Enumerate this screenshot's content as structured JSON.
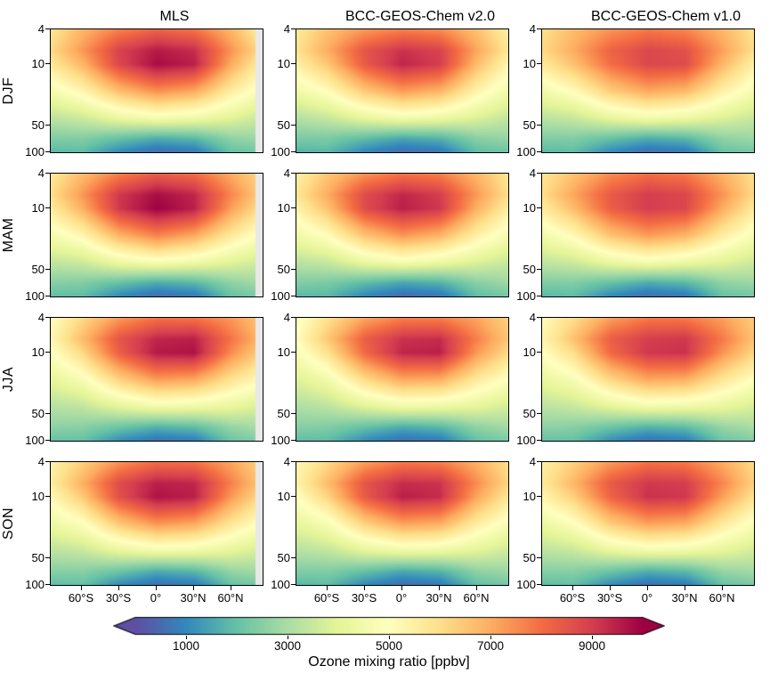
{
  "figure": {
    "columns": [
      "MLS",
      "BCC-GEOS-Chem v2.0",
      "BCC-GEOS-Chem v1.0"
    ],
    "rows": [
      "DJF",
      "MAM",
      "JJA",
      "SON"
    ]
  },
  "axes": {
    "y_ticks": [
      "4",
      "10",
      "50",
      "100"
    ],
    "y_tick_values": [
      4,
      10,
      50,
      100
    ],
    "x_ticks": [
      "60°S",
      "30°S",
      "0°",
      "30°N",
      "60°N"
    ],
    "x_tick_values": [
      -60,
      -30,
      0,
      30,
      60
    ],
    "lat_range": [
      -85,
      85
    ],
    "pressure_range": [
      4,
      100
    ],
    "y_scale": "log"
  },
  "colorbar": {
    "ticks": [
      "1000",
      "3000",
      "5000",
      "7000",
      "9000"
    ],
    "tick_values": [
      1000,
      3000,
      5000,
      7000,
      9000
    ],
    "range": [
      0,
      10000
    ],
    "label": "Ozone mixing ratio [ppbv]",
    "colormap": "Spectral_r",
    "colors": [
      [
        0.0,
        "#5e4fa2"
      ],
      [
        0.1,
        "#3288bd"
      ],
      [
        0.2,
        "#66c2a5"
      ],
      [
        0.3,
        "#abdda4"
      ],
      [
        0.4,
        "#e6f598"
      ],
      [
        0.5,
        "#ffffbf"
      ],
      [
        0.6,
        "#fee08b"
      ],
      [
        0.7,
        "#fdae61"
      ],
      [
        0.8,
        "#f46d43"
      ],
      [
        0.9,
        "#d53e4f"
      ],
      [
        1.0,
        "#9e0142"
      ]
    ]
  },
  "chart_data": {
    "type": "heatmap",
    "units": "ppbv",
    "no_data_color": "#e9e9e9",
    "lats": [
      -85,
      -60,
      -30,
      0,
      30,
      60,
      85
    ],
    "pressures": [
      4,
      7,
      10,
      20,
      40,
      70,
      100
    ],
    "panels": [
      {
        "row": "DJF",
        "col": "MLS",
        "edge_strip": true,
        "values": [
          [
            5800,
            6800,
            7700,
            8200,
            7900,
            6800,
            5500
          ],
          [
            6100,
            7300,
            8900,
            9600,
            9300,
            7400,
            6000
          ],
          [
            5700,
            6800,
            8800,
            9800,
            9500,
            7000,
            5500
          ],
          [
            4600,
            5300,
            6700,
            7500,
            7100,
            5600,
            4700
          ],
          [
            3300,
            3600,
            4300,
            4700,
            4500,
            4000,
            3500
          ],
          [
            2400,
            2400,
            2000,
            1600,
            1800,
            2600,
            2800
          ],
          [
            1800,
            1900,
            1000,
            500,
            700,
            2000,
            2200
          ]
        ]
      },
      {
        "row": "DJF",
        "col": "BCC-GEOS-Chem v2.0",
        "edge_strip": false,
        "values": [
          [
            5700,
            6600,
            7300,
            7700,
            7500,
            6600,
            5500
          ],
          [
            5900,
            7000,
            8500,
            9200,
            8900,
            7100,
            5800
          ],
          [
            5500,
            6500,
            8400,
            9400,
            9000,
            6700,
            5300
          ],
          [
            4400,
            5100,
            6500,
            7300,
            6900,
            5400,
            4500
          ],
          [
            3200,
            3500,
            4200,
            4600,
            4400,
            3900,
            3400
          ],
          [
            2300,
            2300,
            1900,
            1500,
            1700,
            2500,
            2700
          ],
          [
            1700,
            1800,
            950,
            480,
            650,
            1900,
            2100
          ]
        ]
      },
      {
        "row": "DJF",
        "col": "BCC-GEOS-Chem v1.0",
        "edge_strip": false,
        "values": [
          [
            6000,
            6700,
            7400,
            7800,
            7600,
            6800,
            5900
          ],
          [
            6100,
            7000,
            8200,
            8800,
            8600,
            7200,
            6000
          ],
          [
            5700,
            6600,
            8000,
            8800,
            8700,
            6800,
            5500
          ],
          [
            4500,
            5100,
            6400,
            7100,
            6800,
            5500,
            4600
          ],
          [
            3300,
            3500,
            4200,
            4600,
            4400,
            3900,
            3500
          ],
          [
            2400,
            2400,
            2000,
            1600,
            1800,
            2600,
            2800
          ],
          [
            1800,
            1900,
            1000,
            520,
            700,
            2000,
            2200
          ]
        ]
      },
      {
        "row": "MAM",
        "col": "MLS",
        "edge_strip": true,
        "values": [
          [
            5700,
            6700,
            7700,
            8300,
            8000,
            7000,
            6100
          ],
          [
            6000,
            7300,
            9100,
            9800,
            9400,
            7600,
            6300
          ],
          [
            5600,
            6900,
            9100,
            10000,
            9500,
            7200,
            5900
          ],
          [
            4600,
            5300,
            6900,
            7700,
            7100,
            5700,
            4800
          ],
          [
            3400,
            3600,
            4400,
            4800,
            4500,
            4000,
            3600
          ],
          [
            2500,
            2400,
            2000,
            1600,
            1800,
            2600,
            2900
          ],
          [
            1900,
            1900,
            1000,
            500,
            700,
            2000,
            2300
          ]
        ]
      },
      {
        "row": "MAM",
        "col": "BCC-GEOS-Chem v2.0",
        "edge_strip": false,
        "values": [
          [
            5500,
            6500,
            7400,
            7900,
            7700,
            6800,
            5800
          ],
          [
            5800,
            7000,
            8700,
            9400,
            9000,
            7300,
            6000
          ],
          [
            5400,
            6600,
            8700,
            9500,
            9100,
            6900,
            5600
          ],
          [
            4400,
            5100,
            6600,
            7400,
            6900,
            5500,
            4600
          ],
          [
            3300,
            3500,
            4300,
            4700,
            4400,
            3900,
            3500
          ],
          [
            2400,
            2300,
            1900,
            1500,
            1700,
            2500,
            2800
          ],
          [
            1800,
            1800,
            950,
            480,
            650,
            1900,
            2200
          ]
        ]
      },
      {
        "row": "MAM",
        "col": "BCC-GEOS-Chem v1.0",
        "edge_strip": false,
        "values": [
          [
            5800,
            6600,
            7500,
            8000,
            7800,
            6900,
            6000
          ],
          [
            6000,
            7100,
            8400,
            9000,
            8800,
            7400,
            6100
          ],
          [
            5600,
            6700,
            8300,
            9000,
            8800,
            7000,
            5700
          ],
          [
            4500,
            5200,
            6600,
            7300,
            6900,
            5600,
            4700
          ],
          [
            3400,
            3600,
            4300,
            4700,
            4400,
            4000,
            3600
          ],
          [
            2400,
            2400,
            2000,
            1600,
            1800,
            2600,
            2800
          ],
          [
            1800,
            1900,
            1000,
            520,
            700,
            2000,
            2200
          ]
        ]
      },
      {
        "row": "JJA",
        "col": "MLS",
        "edge_strip": true,
        "values": [
          [
            5000,
            6100,
            7300,
            7900,
            7900,
            7300,
            6500
          ],
          [
            5200,
            6700,
            8500,
            9400,
            9500,
            7900,
            6700
          ],
          [
            4900,
            6100,
            8300,
            9600,
            9700,
            7500,
            6300
          ],
          [
            4100,
            4700,
            6300,
            7300,
            7100,
            5900,
            5100
          ],
          [
            3200,
            3400,
            4100,
            4600,
            4500,
            4200,
            3800
          ],
          [
            2600,
            2500,
            2100,
            1700,
            1900,
            2700,
            3000
          ],
          [
            2000,
            2000,
            1100,
            600,
            800,
            2100,
            2400
          ]
        ]
      },
      {
        "row": "JJA",
        "col": "BCC-GEOS-Chem v2.0",
        "edge_strip": false,
        "values": [
          [
            4800,
            5900,
            7100,
            7700,
            7700,
            7100,
            6300
          ],
          [
            5000,
            6500,
            8300,
            9200,
            9300,
            7700,
            6500
          ],
          [
            4700,
            5900,
            8100,
            9400,
            9500,
            7300,
            6100
          ],
          [
            3900,
            4500,
            6100,
            7100,
            7000,
            5700,
            4900
          ],
          [
            3100,
            3300,
            4000,
            4500,
            4400,
            4100,
            3700
          ],
          [
            2500,
            2400,
            2000,
            1600,
            1800,
            2600,
            2900
          ],
          [
            1900,
            1900,
            1050,
            550,
            750,
            2000,
            2300
          ]
        ]
      },
      {
        "row": "JJA",
        "col": "BCC-GEOS-Chem v1.0",
        "edge_strip": false,
        "values": [
          [
            5100,
            6000,
            7200,
            7800,
            7800,
            7200,
            6400
          ],
          [
            5300,
            6600,
            8300,
            9000,
            9100,
            7800,
            6600
          ],
          [
            5000,
            6000,
            8100,
            9100,
            9200,
            7400,
            6200
          ],
          [
            4200,
            4700,
            6200,
            7100,
            7000,
            5800,
            5000
          ],
          [
            3300,
            3500,
            4100,
            4600,
            4500,
            4200,
            3800
          ],
          [
            2600,
            2500,
            2100,
            1700,
            1900,
            2700,
            3000
          ],
          [
            2000,
            2000,
            1100,
            600,
            800,
            2100,
            2400
          ]
        ]
      },
      {
        "row": "SON",
        "col": "MLS",
        "edge_strip": true,
        "values": [
          [
            5400,
            6300,
            7400,
            8000,
            7900,
            7100,
            6200
          ],
          [
            5600,
            6900,
            8700,
            9500,
            9400,
            7700,
            6400
          ],
          [
            5200,
            6400,
            8600,
            9700,
            9500,
            7300,
            6000
          ],
          [
            4300,
            4900,
            6500,
            7400,
            7100,
            5800,
            4900
          ],
          [
            3300,
            3500,
            4200,
            4600,
            4500,
            4100,
            3700
          ],
          [
            2500,
            2500,
            2100,
            1600,
            1800,
            2700,
            2900
          ],
          [
            1900,
            2000,
            1050,
            550,
            750,
            2000,
            2300
          ]
        ]
      },
      {
        "row": "SON",
        "col": "BCC-GEOS-Chem v2.0",
        "edge_strip": false,
        "values": [
          [
            5200,
            6100,
            7200,
            7800,
            7700,
            6900,
            6000
          ],
          [
            5400,
            6700,
            8500,
            9300,
            9200,
            7500,
            6200
          ],
          [
            5000,
            6200,
            8400,
            9500,
            9300,
            7100,
            5800
          ],
          [
            4100,
            4700,
            6300,
            7200,
            7000,
            5600,
            4700
          ],
          [
            3200,
            3400,
            4100,
            4500,
            4400,
            4000,
            3600
          ],
          [
            2400,
            2400,
            2000,
            1550,
            1750,
            2600,
            2800
          ],
          [
            1800,
            1900,
            1000,
            500,
            700,
            1950,
            2200
          ]
        ]
      },
      {
        "row": "SON",
        "col": "BCC-GEOS-Chem v1.0",
        "edge_strip": false,
        "values": [
          [
            5500,
            6300,
            7300,
            7900,
            7800,
            7000,
            6100
          ],
          [
            5700,
            6800,
            8400,
            9100,
            9000,
            7600,
            6300
          ],
          [
            5300,
            6300,
            8200,
            9200,
            9100,
            7200,
            5900
          ],
          [
            4300,
            4900,
            6400,
            7200,
            7000,
            5700,
            4800
          ],
          [
            3300,
            3500,
            4200,
            4600,
            4500,
            4100,
            3700
          ],
          [
            2500,
            2500,
            2100,
            1650,
            1850,
            2700,
            2900
          ],
          [
            1900,
            2000,
            1050,
            550,
            750,
            2000,
            2300
          ]
        ]
      }
    ]
  }
}
